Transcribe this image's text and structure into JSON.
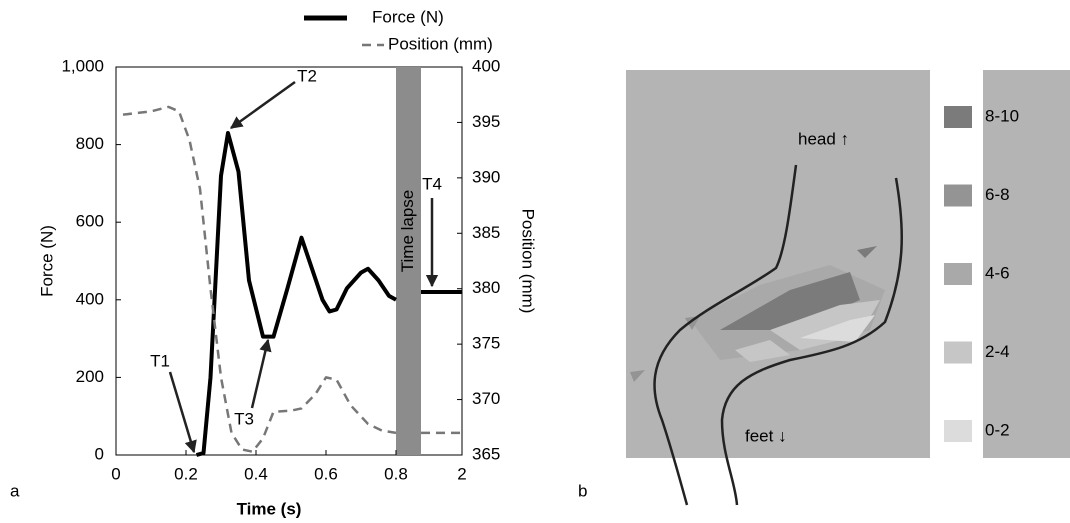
{
  "chart_data": [
    {
      "type": "line",
      "panel_label": "a",
      "x_label": "Time (s)",
      "y_label": "Force (N)",
      "y2_label": "Position (mm)",
      "xlim": [
        0,
        0.8
      ],
      "xticks": [
        0,
        0.2,
        0.4,
        0.6,
        0.8
      ],
      "xticks_after_lapse": [
        2
      ],
      "time_lapse": "Time lapse",
      "ylim": [
        0,
        1000
      ],
      "yticks": [
        0,
        200,
        400,
        600,
        800,
        {
          "value": 1000,
          "label": "1,000"
        }
      ],
      "y2lim": [
        365,
        400
      ],
      "y2ticks": [
        365,
        370,
        375,
        380,
        385,
        390,
        395,
        400
      ],
      "series": [
        {
          "name": "Force (N)",
          "color": "#000000",
          "style": "solid",
          "x": [
            0.23,
            0.25,
            0.27,
            0.3,
            0.32,
            0.35,
            0.38,
            0.42,
            0.45,
            0.49,
            0.53,
            0.56,
            0.59,
            0.61,
            0.63,
            0.66,
            0.7,
            0.72,
            0.75,
            0.78,
            0.8
          ],
          "values": [
            0,
            5,
            200,
            720,
            830,
            730,
            450,
            305,
            305,
            430,
            560,
            480,
            400,
            370,
            375,
            430,
            470,
            480,
            450,
            410,
            400
          ],
          "after_lapse_value": 420
        },
        {
          "name": "Position (mm)",
          "color": "#777777",
          "style": "dashed",
          "axis": "y2",
          "x": [
            0.02,
            0.1,
            0.15,
            0.18,
            0.21,
            0.24,
            0.27,
            0.3,
            0.33,
            0.36,
            0.39,
            0.42,
            0.45,
            0.5,
            0.53,
            0.57,
            0.6,
            0.63,
            0.67,
            0.72,
            0.76,
            0.8
          ],
          "values": [
            395.7,
            396,
            396.4,
            396,
            393.4,
            389,
            380,
            372,
            367,
            365.5,
            365.3,
            366.5,
            368.9,
            369,
            369.2,
            370.5,
            372,
            371.8,
            369.5,
            367.8,
            367.2,
            367
          ],
          "after_lapse_value": 367
        }
      ],
      "annotations": [
        "T1",
        "T2",
        "T3",
        "T4"
      ]
    },
    {
      "type": "heatmap",
      "panel_label": "b",
      "background": "#b4b4b4",
      "labels": [
        "head ↑",
        "feet ↓"
      ],
      "legend": [
        {
          "label": "8-10",
          "color": "#7b7b7b"
        },
        {
          "label": "6-8",
          "color": "#949494"
        },
        {
          "label": "4-6",
          "color": "#a9a9a9"
        },
        {
          "label": "2-4",
          "color": "#c6c6c6"
        },
        {
          "label": "0-2",
          "color": "#dcdcdc"
        }
      ]
    }
  ]
}
